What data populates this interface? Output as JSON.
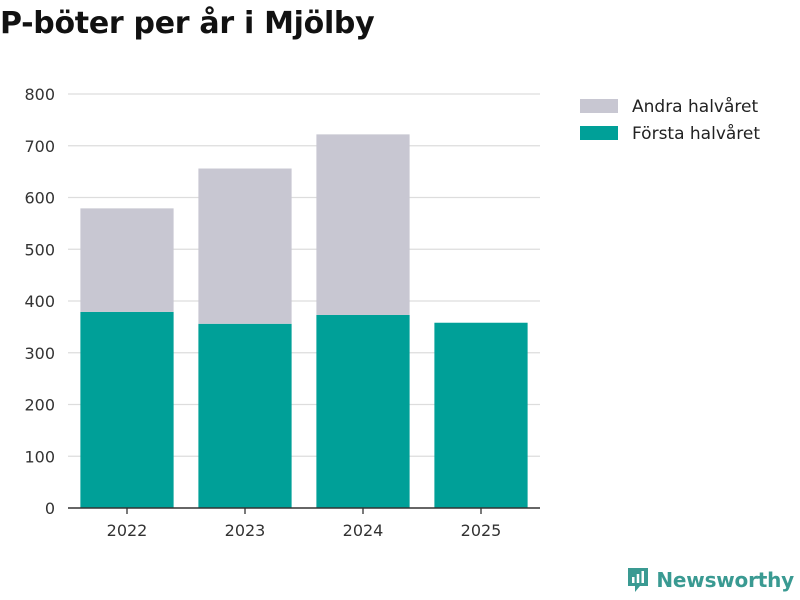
{
  "chart_data": {
    "type": "bar",
    "stacked": true,
    "title": "P-böter per år i Mjölby",
    "categories": [
      "2022",
      "2023",
      "2024",
      "2025"
    ],
    "series": [
      {
        "name": "Första halvåret",
        "color": "#00a098",
        "values": [
          379,
          356,
          373,
          358
        ]
      },
      {
        "name": "Andra halvåret",
        "color": "#c8c7d2",
        "values": [
          200,
          300,
          349,
          0
        ]
      }
    ],
    "legend_order": [
      "Andra halvåret",
      "Första halvåret"
    ],
    "yticks": [
      0,
      100,
      200,
      300,
      400,
      500,
      600,
      700,
      800
    ],
    "ylim": [
      0,
      800
    ],
    "xlabel": "",
    "ylabel": "",
    "grid": true,
    "legend_position": "top-right"
  },
  "brand": {
    "name": "Newsworthy",
    "icon": "newsworthy-logo-icon",
    "color": "#3a9a92"
  }
}
